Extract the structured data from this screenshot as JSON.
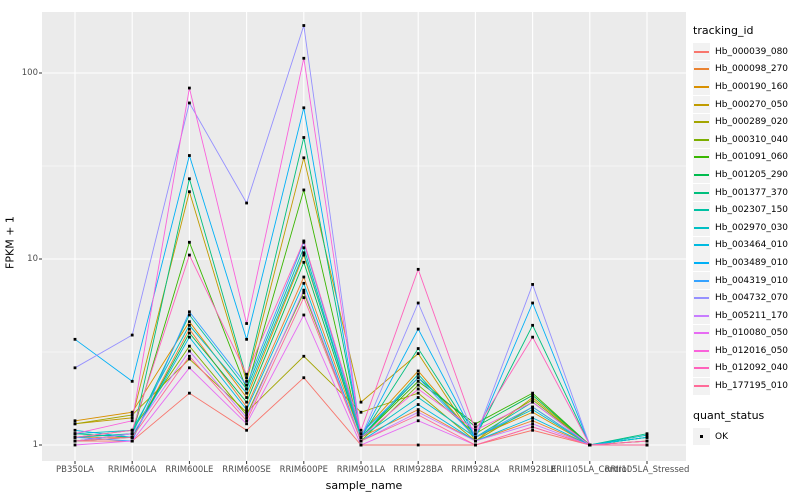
{
  "figure": {
    "ylabel": "FPKM + 1",
    "xlabel": "sample_name",
    "panel_bg": "#EBEBEB",
    "grid_color": "#FFFFFF",
    "tick_color": "#333333",
    "tick_label_color": "#4D4D4D",
    "point_color": "#000000"
  },
  "legend": {
    "tracking_title": "tracking_id",
    "quant_title": "quant_status",
    "quant_items": [
      {
        "label": "OK"
      }
    ]
  },
  "chart_data": {
    "type": "line",
    "y_scale": "log10",
    "ylabel": "FPKM + 1",
    "xlabel": "sample_name",
    "y_ticks": [
      1,
      10,
      100
    ],
    "ylim": [
      1,
      210
    ],
    "grid": "on",
    "legend_position": "right",
    "x_categories": [
      "PB350LA",
      "RRIM600LA",
      "RRIM600LE",
      "RRIM600SE",
      "RRIM600PE",
      "RRIM901LA",
      "RRIM928BA",
      "RRIM928LA",
      "RRIM928LE",
      "RRII105LA_Control",
      "RRII105LA_Stressed"
    ],
    "series": [
      {
        "name": "Hb_000039_080",
        "color": "#F8766D",
        "values": [
          1.05,
          1.05,
          1.9,
          1.2,
          2.3,
          1.0,
          1.0,
          1.0,
          1.2,
          1.0,
          1.0
        ]
      },
      {
        "name": "Hb_000098_270",
        "color": "#EA8331",
        "values": [
          1.1,
          1.1,
          4.2,
          1.6,
          8.0,
          1.1,
          1.55,
          1.05,
          1.35,
          1.0,
          1.05
        ]
      },
      {
        "name": "Hb_000190_160",
        "color": "#D89000",
        "values": [
          1.35,
          1.5,
          4.6,
          1.8,
          10.5,
          1.15,
          2.5,
          1.1,
          1.5,
          1.0,
          1.0
        ]
      },
      {
        "name": "Hb_000270_050",
        "color": "#C09B00",
        "values": [
          1.3,
          1.4,
          23,
          2.2,
          35,
          1.7,
          3.1,
          1.05,
          1.8,
          1.0,
          1.0
        ]
      },
      {
        "name": "Hb_000289_020",
        "color": "#A3A500",
        "values": [
          1.3,
          1.45,
          2.9,
          1.5,
          3.0,
          1.5,
          1.9,
          1.05,
          1.6,
          1.0,
          1.0
        ]
      },
      {
        "name": "Hb_000310_040",
        "color": "#7CAE00",
        "values": [
          1.1,
          1.2,
          3.4,
          1.45,
          6.6,
          1.05,
          2.1,
          1.15,
          1.75,
          1.0,
          1.05
        ]
      },
      {
        "name": "Hb_001091_060",
        "color": "#39B600",
        "values": [
          1.05,
          1.15,
          12.3,
          2.0,
          23.5,
          1.1,
          2.2,
          1.3,
          1.9,
          1.0,
          1.1
        ]
      },
      {
        "name": "Hb_001205_290",
        "color": "#00BB4E",
        "values": [
          1.05,
          1.1,
          4.0,
          1.7,
          9.6,
          1.1,
          2.3,
          1.25,
          1.85,
          1.0,
          1.1
        ]
      },
      {
        "name": "Hb_001377_370",
        "color": "#00BF7D",
        "values": [
          1.15,
          1.1,
          27,
          2.3,
          45,
          1.1,
          3.3,
          1.1,
          4.4,
          1.0,
          1.15
        ]
      },
      {
        "name": "Hb_002307_150",
        "color": "#00C1A3",
        "values": [
          1.1,
          1.15,
          5.0,
          2.0,
          11.5,
          1.1,
          2.4,
          1.1,
          1.7,
          1.0,
          1.1
        ]
      },
      {
        "name": "Hb_002970_030",
        "color": "#00BFC4",
        "values": [
          1.15,
          1.2,
          4.4,
          1.9,
          10.8,
          1.1,
          1.8,
          1.1,
          1.55,
          1.0,
          1.13
        ]
      },
      {
        "name": "Hb_003464_010",
        "color": "#00BAE0",
        "values": [
          1.2,
          1.1,
          3.8,
          1.55,
          7.4,
          1.05,
          1.65,
          1.05,
          1.4,
          1.0,
          1.1
        ]
      },
      {
        "name": "Hb_003489_010",
        "color": "#00B0F6",
        "values": [
          3.7,
          2.2,
          36,
          3.7,
          65,
          1.1,
          4.2,
          1.1,
          5.8,
          1.0,
          1.0
        ]
      },
      {
        "name": "Hb_004319_010",
        "color": "#35A2FF",
        "values": [
          1.1,
          1.05,
          5.2,
          2.1,
          12.3,
          1.15,
          2.3,
          1.1,
          1.6,
          1.0,
          1.0
        ]
      },
      {
        "name": "Hb_004732_070",
        "color": "#9590FF",
        "values": [
          2.6,
          3.9,
          69,
          20,
          180,
          1.1,
          5.8,
          1.1,
          7.3,
          1.0,
          1.0
        ]
      },
      {
        "name": "Hb_005211_170",
        "color": "#C77CFF",
        "values": [
          1.05,
          1.15,
          3.2,
          1.4,
          6.8,
          1.05,
          1.5,
          1.05,
          1.3,
          1.0,
          1.0
        ]
      },
      {
        "name": "Hb_010080_050",
        "color": "#E76BF3",
        "values": [
          1.0,
          1.05,
          2.6,
          1.3,
          5.0,
          1.0,
          1.35,
          1.0,
          1.25,
          1.0,
          1.0
        ]
      },
      {
        "name": "Hb_012016_050",
        "color": "#FA62DB",
        "values": [
          1.15,
          1.35,
          83,
          4.5,
          120,
          1.1,
          2.0,
          1.2,
          1.7,
          1.0,
          1.0
        ]
      },
      {
        "name": "Hb_012092_040",
        "color": "#FF62BC",
        "values": [
          1.1,
          1.2,
          10.5,
          2.4,
          12.5,
          1.2,
          8.8,
          1.2,
          3.8,
          1.0,
          1.05
        ]
      },
      {
        "name": "Hb_177195_010",
        "color": "#FF6A98",
        "values": [
          1.05,
          1.1,
          3.0,
          1.35,
          6.2,
          1.05,
          1.45,
          1.0,
          1.25,
          1.0,
          1.0
        ]
      }
    ]
  }
}
